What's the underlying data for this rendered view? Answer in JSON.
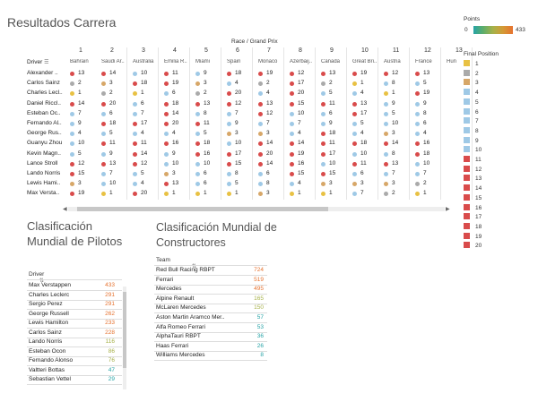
{
  "titles": {
    "main": "Resultados Carrera",
    "drivers": "Clasificación Mundial de Pilotos",
    "constructors": "Clasificación Mundial de Constructores"
  },
  "grid": {
    "race_header": "Race / Grand Prix",
    "driver_header": "Driver",
    "rounds": [
      "1",
      "2",
      "3",
      "4",
      "5",
      "6",
      "7",
      "8",
      "9",
      "10",
      "11",
      "12",
      "13"
    ],
    "gps": [
      "Bahrain",
      "Saudi Ar..",
      "Australia",
      "Emilia R..",
      "Miami",
      "Spain",
      "Monaco",
      "Azerbaij..",
      "Canada",
      "Great Bri..",
      "Austria",
      "France",
      "Hun"
    ],
    "drivers": [
      {
        "name": "Alexander ..",
        "pos": [
          "13",
          "14",
          "10",
          "11",
          "9",
          "18",
          "19",
          "12",
          "13",
          "19",
          "12",
          "13",
          ""
        ]
      },
      {
        "name": "Carlos Sainz",
        "pos": [
          "2",
          "3",
          "18",
          "19",
          "3",
          "4",
          "2",
          "17",
          "2",
          "1",
          "8",
          "5",
          ""
        ]
      },
      {
        "name": "Charles Lecl..",
        "pos": [
          "1",
          "2",
          "1",
          "6",
          "2",
          "20",
          "4",
          "20",
          "5",
          "4",
          "1",
          "19",
          ""
        ]
      },
      {
        "name": "Daniel Riccl..",
        "pos": [
          "14",
          "20",
          "6",
          "18",
          "13",
          "12",
          "13",
          "15",
          "11",
          "13",
          "9",
          "9",
          ""
        ]
      },
      {
        "name": "Esteban Oc..",
        "pos": [
          "7",
          "6",
          "7",
          "14",
          "8",
          "7",
          "12",
          "10",
          "6",
          "17",
          "5",
          "8",
          ""
        ]
      },
      {
        "name": "Fernando Al..",
        "pos": [
          "9",
          "18",
          "17",
          "20",
          "11",
          "9",
          "7",
          "7",
          "9",
          "5",
          "10",
          "6",
          ""
        ]
      },
      {
        "name": "George Rus..",
        "pos": [
          "4",
          "5",
          "4",
          "4",
          "5",
          "3",
          "3",
          "4",
          "18",
          "4",
          "3",
          "4",
          ""
        ]
      },
      {
        "name": "Guanyu Zhou",
        "pos": [
          "10",
          "11",
          "11",
          "16",
          "18",
          "10",
          "14",
          "14",
          "11",
          "18",
          "14",
          "16",
          ""
        ]
      },
      {
        "name": "Kevin Magn..",
        "pos": [
          "5",
          "9",
          "14",
          "9",
          "16",
          "17",
          "20",
          "19",
          "17",
          "10",
          "8",
          "18",
          ""
        ]
      },
      {
        "name": "Lance Stroll",
        "pos": [
          "12",
          "13",
          "12",
          "10",
          "10",
          "15",
          "14",
          "16",
          "10",
          "11",
          "13",
          "10",
          ""
        ]
      },
      {
        "name": "Lando Norris",
        "pos": [
          "15",
          "7",
          "5",
          "3",
          "6",
          "8",
          "6",
          "15",
          "15",
          "6",
          "7",
          "7",
          ""
        ]
      },
      {
        "name": "Lewis Hami..",
        "pos": [
          "3",
          "10",
          "4",
          "13",
          "6",
          "5",
          "8",
          "4",
          "3",
          "3",
          "3",
          "2",
          ""
        ]
      },
      {
        "name": "Max Versta..",
        "pos": [
          "19",
          "1",
          "20",
          "1",
          "1",
          "1",
          "3",
          "1",
          "1",
          "7",
          "2",
          "1",
          ""
        ]
      }
    ]
  },
  "legend": {
    "points_title": "Points",
    "points_min": "0",
    "points_max": "433",
    "final_position_title": "Final Position",
    "positions": [
      "1",
      "2",
      "3",
      "4",
      "5",
      "6",
      "7",
      "8",
      "9",
      "10",
      "11",
      "12",
      "13",
      "14",
      "15",
      "16",
      "17",
      "18",
      "19",
      "20"
    ]
  },
  "drivers_table": {
    "header": "Driver",
    "rows": [
      {
        "name": "Max Verstappen",
        "pts": "433"
      },
      {
        "name": "Charles Leclerc",
        "pts": "291"
      },
      {
        "name": "Sergio Perez",
        "pts": "291"
      },
      {
        "name": "George Russell",
        "pts": "262"
      },
      {
        "name": "Lewis Hamilton",
        "pts": "233"
      },
      {
        "name": "Carlos Sainz",
        "pts": "228"
      },
      {
        "name": "Lando Norris",
        "pts": "116"
      },
      {
        "name": "Esteban Ocon",
        "pts": "86"
      },
      {
        "name": "Fernando Alonso",
        "pts": "76"
      },
      {
        "name": "Valtteri Bottas",
        "pts": "47"
      },
      {
        "name": "Sebastian Vettel",
        "pts": "29"
      }
    ]
  },
  "constructors_table": {
    "header": "Team",
    "rows": [
      {
        "name": "Red Bull Racing RBPT",
        "pts": "724"
      },
      {
        "name": "Ferrari",
        "pts": "519"
      },
      {
        "name": "Mercedes",
        "pts": "495"
      },
      {
        "name": "Alpine Renault",
        "pts": "165"
      },
      {
        "name": "McLaren Mercedes",
        "pts": "150"
      },
      {
        "name": "Aston Martin Aramco Mer..",
        "pts": "57"
      },
      {
        "name": "Alfa Romeo Ferrari",
        "pts": "53"
      },
      {
        "name": "AlphaTauri RBPT",
        "pts": "36"
      },
      {
        "name": "Haas Ferrari",
        "pts": "26"
      },
      {
        "name": "Williams Mercedes",
        "pts": "8"
      }
    ]
  },
  "colors": {
    "p1": "#e8c143",
    "p2": "#aaaaaa",
    "p3": "#d7a768",
    "p4_10": "#9fc9e6",
    "p11_20": "#d94b4b",
    "pts_high": "#e6722f",
    "pts_mid": "#a7b14a",
    "pts_low": "#26a3a6"
  }
}
